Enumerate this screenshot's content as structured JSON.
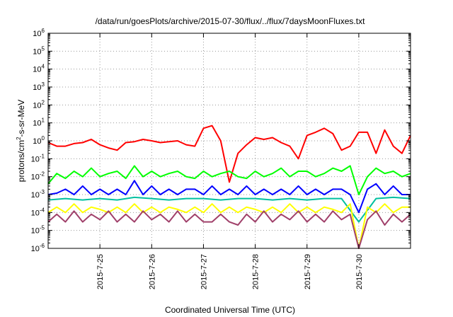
{
  "chart_data": {
    "type": "line",
    "title": "/data/run/goesPlots/archive/2015-07-30/flux/../flux/7daysMoonFluxes.txt",
    "xlabel": "Coordinated Universal Time (UTC)",
    "ylabel": "protons/cm2-s-sr-MeV",
    "ylabel_parts": {
      "before": "protons/cm",
      "sup": "2",
      "after": "-s-sr-MeV"
    },
    "y_scale": "log",
    "ylim": [
      1e-06,
      1000000.0
    ],
    "xlim": [
      "2015-07-24 00:00",
      "2015-07-30 23:59"
    ],
    "grid": true,
    "y_ticks": [
      {
        "base": "10",
        "exp": "-6"
      },
      {
        "base": "10",
        "exp": "-5"
      },
      {
        "base": "10",
        "exp": "-4"
      },
      {
        "base": "10",
        "exp": "-3"
      },
      {
        "base": "10",
        "exp": "-2"
      },
      {
        "base": "10",
        "exp": "-1"
      },
      {
        "base": "10",
        "exp": "0"
      },
      {
        "base": "10",
        "exp": "1"
      },
      {
        "base": "10",
        "exp": "2"
      },
      {
        "base": "10",
        "exp": "3"
      },
      {
        "base": "10",
        "exp": "4"
      },
      {
        "base": "10",
        "exp": "5"
      },
      {
        "base": "10",
        "exp": "6"
      }
    ],
    "x_ticks": [
      "2015-7-25",
      "2015-7-26",
      "2015-7-27",
      "2015-7-28",
      "2015-7-29",
      "2015-7-30"
    ],
    "series": [
      {
        "color": "#ff0000",
        "x": [
          "2015-07-24 00:00",
          "2015-07-24 04:00",
          "2015-07-24 08:00",
          "2015-07-24 12:00",
          "2015-07-24 16:00",
          "2015-07-24 20:00",
          "2015-07-25 00:00",
          "2015-07-25 04:00",
          "2015-07-25 08:00",
          "2015-07-25 12:00",
          "2015-07-25 16:00",
          "2015-07-25 20:00",
          "2015-07-26 00:00",
          "2015-07-26 04:00",
          "2015-07-26 08:00",
          "2015-07-26 12:00",
          "2015-07-26 16:00",
          "2015-07-26 20:00",
          "2015-07-27 00:00",
          "2015-07-27 04:00",
          "2015-07-27 08:00",
          "2015-07-27 12:00",
          "2015-07-27 16:00",
          "2015-07-27 20:00",
          "2015-07-28 00:00",
          "2015-07-28 04:00",
          "2015-07-28 08:00",
          "2015-07-28 12:00",
          "2015-07-28 16:00",
          "2015-07-28 20:00",
          "2015-07-29 00:00",
          "2015-07-29 04:00",
          "2015-07-29 08:00",
          "2015-07-29 12:00",
          "2015-07-29 16:00",
          "2015-07-29 20:00",
          "2015-07-30 00:00",
          "2015-07-30 04:00",
          "2015-07-30 08:00",
          "2015-07-30 12:00",
          "2015-07-30 16:00",
          "2015-07-30 20:00",
          "2015-07-30 23:59"
        ],
        "y": [
          0.8,
          0.5,
          0.5,
          0.7,
          0.8,
          1.2,
          0.6,
          0.4,
          0.3,
          0.8,
          0.9,
          1.2,
          1.0,
          0.8,
          0.9,
          1.0,
          0.6,
          0.5,
          5.0,
          7.0,
          1.0,
          0.005,
          0.2,
          0.6,
          1.5,
          1.2,
          1.5,
          0.8,
          0.5,
          0.1,
          2.0,
          3.0,
          5.0,
          2.5,
          0.3,
          0.5,
          3.0,
          3.0,
          0.2,
          4.0,
          0.5,
          0.2,
          2.0
        ]
      },
      {
        "color": "#00ff00",
        "x": [
          "2015-07-24 00:00",
          "2015-07-24 04:00",
          "2015-07-24 08:00",
          "2015-07-24 12:00",
          "2015-07-24 16:00",
          "2015-07-24 20:00",
          "2015-07-25 00:00",
          "2015-07-25 04:00",
          "2015-07-25 08:00",
          "2015-07-25 12:00",
          "2015-07-25 16:00",
          "2015-07-25 20:00",
          "2015-07-26 00:00",
          "2015-07-26 04:00",
          "2015-07-26 08:00",
          "2015-07-26 12:00",
          "2015-07-26 16:00",
          "2015-07-26 20:00",
          "2015-07-27 00:00",
          "2015-07-27 04:00",
          "2015-07-27 08:00",
          "2015-07-27 12:00",
          "2015-07-27 16:00",
          "2015-07-27 20:00",
          "2015-07-28 00:00",
          "2015-07-28 04:00",
          "2015-07-28 08:00",
          "2015-07-28 12:00",
          "2015-07-28 16:00",
          "2015-07-28 20:00",
          "2015-07-29 00:00",
          "2015-07-29 04:00",
          "2015-07-29 08:00",
          "2015-07-29 12:00",
          "2015-07-29 16:00",
          "2015-07-29 20:00",
          "2015-07-30 00:00",
          "2015-07-30 04:00",
          "2015-07-30 08:00",
          "2015-07-30 12:00",
          "2015-07-30 16:00",
          "2015-07-30 20:00",
          "2015-07-30 23:59"
        ],
        "y": [
          0.004,
          0.015,
          0.008,
          0.02,
          0.01,
          0.03,
          0.01,
          0.015,
          0.02,
          0.008,
          0.04,
          0.01,
          0.02,
          0.01,
          0.015,
          0.02,
          0.01,
          0.008,
          0.02,
          0.01,
          0.015,
          0.02,
          0.01,
          0.008,
          0.02,
          0.01,
          0.015,
          0.03,
          0.01,
          0.02,
          0.02,
          0.01,
          0.015,
          0.03,
          0.02,
          0.04,
          0.001,
          0.01,
          0.03,
          0.015,
          0.02,
          0.01,
          0.015
        ]
      },
      {
        "color": "#0000ff",
        "x": [
          "2015-07-24 00:00",
          "2015-07-24 04:00",
          "2015-07-24 08:00",
          "2015-07-24 12:00",
          "2015-07-24 16:00",
          "2015-07-24 20:00",
          "2015-07-25 00:00",
          "2015-07-25 04:00",
          "2015-07-25 08:00",
          "2015-07-25 12:00",
          "2015-07-25 16:00",
          "2015-07-25 20:00",
          "2015-07-26 00:00",
          "2015-07-26 04:00",
          "2015-07-26 08:00",
          "2015-07-26 12:00",
          "2015-07-26 16:00",
          "2015-07-26 20:00",
          "2015-07-27 00:00",
          "2015-07-27 04:00",
          "2015-07-27 08:00",
          "2015-07-27 12:00",
          "2015-07-27 16:00",
          "2015-07-27 20:00",
          "2015-07-28 00:00",
          "2015-07-28 04:00",
          "2015-07-28 08:00",
          "2015-07-28 12:00",
          "2015-07-28 16:00",
          "2015-07-28 20:00",
          "2015-07-29 00:00",
          "2015-07-29 04:00",
          "2015-07-29 08:00",
          "2015-07-29 12:00",
          "2015-07-29 16:00",
          "2015-07-29 20:00",
          "2015-07-30 00:00",
          "2015-07-30 04:00",
          "2015-07-30 08:00",
          "2015-07-30 12:00",
          "2015-07-30 16:00",
          "2015-07-30 20:00",
          "2015-07-30 23:59"
        ],
        "y": [
          0.001,
          0.0012,
          0.002,
          0.001,
          0.003,
          0.001,
          0.002,
          0.001,
          0.002,
          0.001,
          0.006,
          0.001,
          0.003,
          0.001,
          0.002,
          0.001,
          0.002,
          0.002,
          0.001,
          0.003,
          0.001,
          0.002,
          0.001,
          0.003,
          0.001,
          0.002,
          0.001,
          0.002,
          0.001,
          0.003,
          0.001,
          0.002,
          0.001,
          0.002,
          0.002,
          0.001,
          0.0001,
          0.002,
          0.004,
          0.001,
          0.003,
          0.001,
          0.001
        ]
      },
      {
        "color": "#00c0a0",
        "x": [
          "2015-07-24 00:00",
          "2015-07-24 08:00",
          "2015-07-24 16:00",
          "2015-07-25 00:00",
          "2015-07-25 08:00",
          "2015-07-25 16:00",
          "2015-07-26 00:00",
          "2015-07-26 08:00",
          "2015-07-26 16:00",
          "2015-07-27 00:00",
          "2015-07-27 08:00",
          "2015-07-27 16:00",
          "2015-07-28 00:00",
          "2015-07-28 08:00",
          "2015-07-28 16:00",
          "2015-07-29 00:00",
          "2015-07-29 08:00",
          "2015-07-29 16:00",
          "2015-07-30 00:00",
          "2015-07-30 08:00",
          "2015-07-30 16:00",
          "2015-07-30 23:59"
        ],
        "y": [
          0.0005,
          0.0006,
          0.0005,
          0.0006,
          0.0005,
          0.0007,
          0.0006,
          0.0005,
          0.0006,
          0.0006,
          0.0005,
          0.0006,
          0.0006,
          0.0005,
          0.0006,
          0.0005,
          0.0006,
          0.0006,
          3e-05,
          0.0006,
          0.0007,
          0.0006
        ]
      },
      {
        "color": "#ffff00",
        "x": [
          "2015-07-24 00:00",
          "2015-07-24 04:00",
          "2015-07-24 08:00",
          "2015-07-24 12:00",
          "2015-07-24 16:00",
          "2015-07-24 20:00",
          "2015-07-25 00:00",
          "2015-07-25 04:00",
          "2015-07-25 08:00",
          "2015-07-25 12:00",
          "2015-07-25 16:00",
          "2015-07-25 20:00",
          "2015-07-26 00:00",
          "2015-07-26 04:00",
          "2015-07-26 08:00",
          "2015-07-26 12:00",
          "2015-07-26 16:00",
          "2015-07-26 20:00",
          "2015-07-27 00:00",
          "2015-07-27 04:00",
          "2015-07-27 08:00",
          "2015-07-27 12:00",
          "2015-07-27 16:00",
          "2015-07-27 20:00",
          "2015-07-28 00:00",
          "2015-07-28 04:00",
          "2015-07-28 08:00",
          "2015-07-28 12:00",
          "2015-07-28 16:00",
          "2015-07-28 20:00",
          "2015-07-29 00:00",
          "2015-07-29 04:00",
          "2015-07-29 08:00",
          "2015-07-29 12:00",
          "2015-07-29 16:00",
          "2015-07-29 20:00",
          "2015-07-30 00:00",
          "2015-07-30 04:00",
          "2015-07-30 08:00",
          "2015-07-30 12:00",
          "2015-07-30 16:00",
          "2015-07-30 20:00",
          "2015-07-30 23:59"
        ],
        "y": [
          0.0001,
          0.0002,
          0.0001,
          0.0003,
          0.0001,
          0.0002,
          0.00015,
          0.0001,
          0.0002,
          0.0001,
          0.0003,
          0.0001,
          0.0002,
          0.0001,
          0.0002,
          0.00015,
          0.0001,
          0.0002,
          0.0001,
          0.0003,
          0.0001,
          0.0002,
          0.0001,
          0.0002,
          0.00015,
          0.0001,
          0.0002,
          0.0001,
          0.0003,
          0.0001,
          0.0002,
          0.0001,
          0.0002,
          0.00015,
          0.0001,
          0.0003,
          1e-06,
          0.0002,
          0.0001,
          0.0003,
          0.0001,
          0.0002,
          0.0002
        ]
      },
      {
        "color": "#a0406a",
        "x": [
          "2015-07-24 00:00",
          "2015-07-24 04:00",
          "2015-07-24 08:00",
          "2015-07-24 12:00",
          "2015-07-24 16:00",
          "2015-07-24 20:00",
          "2015-07-25 00:00",
          "2015-07-25 04:00",
          "2015-07-25 08:00",
          "2015-07-25 12:00",
          "2015-07-25 16:00",
          "2015-07-25 20:00",
          "2015-07-26 00:00",
          "2015-07-26 04:00",
          "2015-07-26 08:00",
          "2015-07-26 12:00",
          "2015-07-26 16:00",
          "2015-07-26 20:00",
          "2015-07-27 00:00",
          "2015-07-27 04:00",
          "2015-07-27 08:00",
          "2015-07-27 12:00",
          "2015-07-27 16:00",
          "2015-07-27 20:00",
          "2015-07-28 00:00",
          "2015-07-28 04:00",
          "2015-07-28 08:00",
          "2015-07-28 12:00",
          "2015-07-28 16:00",
          "2015-07-28 20:00",
          "2015-07-29 00:00",
          "2015-07-29 04:00",
          "2015-07-29 08:00",
          "2015-07-29 12:00",
          "2015-07-29 16:00",
          "2015-07-29 20:00",
          "2015-07-30 00:00",
          "2015-07-30 04:00",
          "2015-07-30 08:00",
          "2015-07-30 12:00",
          "2015-07-30 16:00",
          "2015-07-30 20:00",
          "2015-07-30 23:59"
        ],
        "y": [
          3e-05,
          8e-05,
          3e-05,
          0.00012,
          3e-05,
          8e-05,
          4e-05,
          0.00012,
          3e-05,
          8e-05,
          3e-05,
          0.00012,
          4e-05,
          8e-05,
          3e-05,
          0.00012,
          3e-05,
          8e-05,
          3e-05,
          3e-05,
          8e-05,
          3e-05,
          2e-05,
          8e-05,
          3e-05,
          0.00012,
          3e-05,
          8e-05,
          4e-05,
          0.00012,
          3e-05,
          8e-05,
          3e-05,
          0.00012,
          4e-05,
          8e-05,
          1e-06,
          4e-05,
          0.00012,
          2e-05,
          8e-05,
          3e-05,
          8e-05
        ]
      }
    ]
  }
}
